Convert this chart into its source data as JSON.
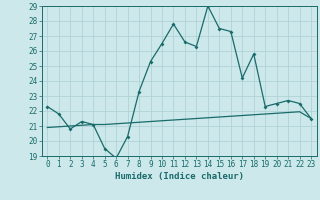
{
  "xlabel": "Humidex (Indice chaleur)",
  "ylabel": "",
  "bg_color": "#cce8ea",
  "grid_color": "#aacfd4",
  "line_color": "#1a6b6b",
  "x_humidex": [
    0,
    1,
    2,
    3,
    4,
    5,
    6,
    7,
    8,
    9,
    10,
    11,
    12,
    13,
    14,
    15,
    16,
    17,
    18,
    19,
    20,
    21,
    22,
    23
  ],
  "y_humidex": [
    22.3,
    21.8,
    20.8,
    21.3,
    21.1,
    19.5,
    18.85,
    20.3,
    23.3,
    25.3,
    26.5,
    27.8,
    26.6,
    26.3,
    29.0,
    27.5,
    27.3,
    24.2,
    25.8,
    22.3,
    22.5,
    22.7,
    22.5,
    21.5
  ],
  "x_trend": [
    0,
    1,
    2,
    3,
    4,
    5,
    6,
    7,
    8,
    9,
    10,
    11,
    12,
    13,
    14,
    15,
    16,
    17,
    18,
    19,
    20,
    21,
    22,
    23
  ],
  "y_trend": [
    20.9,
    20.95,
    21.0,
    21.05,
    21.1,
    21.1,
    21.15,
    21.2,
    21.25,
    21.3,
    21.35,
    21.4,
    21.45,
    21.5,
    21.55,
    21.6,
    21.65,
    21.7,
    21.75,
    21.8,
    21.85,
    21.9,
    21.95,
    21.5
  ],
  "xlim": [
    -0.5,
    23.5
  ],
  "ylim": [
    19,
    29
  ],
  "yticks": [
    19,
    20,
    21,
    22,
    23,
    24,
    25,
    26,
    27,
    28,
    29
  ],
  "xticks": [
    0,
    1,
    2,
    3,
    4,
    5,
    6,
    7,
    8,
    9,
    10,
    11,
    12,
    13,
    14,
    15,
    16,
    17,
    18,
    19,
    20,
    21,
    22,
    23
  ],
  "marker": "D",
  "markersize": 2.0,
  "linewidth": 0.9,
  "font_family": "monospace",
  "xlabel_fontsize": 6.5,
  "tick_fontsize": 5.5
}
